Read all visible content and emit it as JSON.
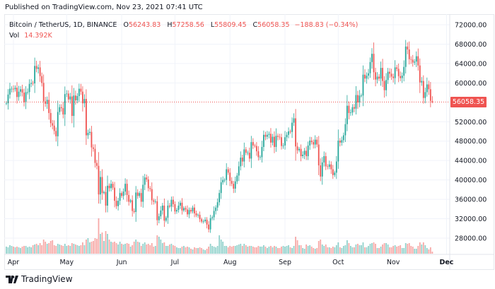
{
  "header": {
    "published": "Published on TradingView.com, Nov 23, 2021 07:41 UTC"
  },
  "legend": {
    "symbol": "Bitcoin / TetherUS, 1D, BINANCE",
    "o_label": "O",
    "o": "56243.83",
    "h_label": "H",
    "h": "57258.56",
    "l_label": "L",
    "l": "55809.45",
    "c_label": "C",
    "c": "56058.35",
    "change": "−188.83 (−0.34%)",
    "vol_label": "Vol",
    "vol": "14.392K"
  },
  "last_price_label": "56058.35",
  "footer": {
    "brand": "TradingView",
    "logo_icon": "tradingview-logo-icon"
  },
  "chart_data": {
    "type": "candlestick",
    "symbol": "Bitcoin / TetherUS",
    "interval": "1D",
    "start_date": "2021-03-28",
    "end_date": "2021-11-23",
    "colors": {
      "up": "#26a69a",
      "down": "#ef5350",
      "last_price_line": "#ef5350"
    },
    "grid": true,
    "y_scale": "linear",
    "ylim": [
      26000,
      74000
    ],
    "y_ticks": [
      "72000.00",
      "68000.00",
      "64000.00",
      "60000.00",
      "52000.00",
      "48000.00",
      "44000.00",
      "40000.00",
      "36000.00",
      "32000.00",
      "28000.00"
    ],
    "x_ticks": [
      "Apr",
      "May",
      "Jun",
      "Jul",
      "Aug",
      "Sep",
      "Oct",
      "Nov",
      "Dec"
    ],
    "last_price": 56058.35,
    "last_candle": {
      "open": 56243.83,
      "high": 57258.56,
      "low": 55809.45,
      "close": 56058.35
    },
    "first_open": 55800,
    "close": [
      55800,
      57600,
      58800,
      58800,
      58700,
      59000,
      57100,
      58200,
      58700,
      58000,
      56000,
      58100,
      58100,
      59800,
      60000,
      59900,
      63500,
      62900,
      63200,
      61400,
      60000,
      56200,
      55700,
      56500,
      53800,
      51700,
      51200,
      50100,
      49000,
      54000,
      55000,
      54800,
      53500,
      57700,
      57800,
      56600,
      57200,
      53200,
      57400,
      56400,
      57300,
      58800,
      58200,
      55800,
      56700,
      49200,
      49700,
      49900,
      46700,
      46400,
      43500,
      42900,
      37000,
      40600,
      37300,
      37500,
      34700,
      38800,
      38300,
      39200,
      38400,
      35700,
      34600,
      35700,
      37300,
      36700,
      37600,
      39200,
      36900,
      35500,
      35800,
      33600,
      33400,
      37400,
      36700,
      37300,
      35500,
      39000,
      40500,
      40100,
      38300,
      38100,
      35800,
      35500,
      35600,
      31700,
      32500,
      33700,
      34700,
      31600,
      32200,
      34700,
      34500,
      35900,
      35000,
      33500,
      33800,
      34700,
      35300,
      33700,
      34200,
      33900,
      32900,
      33800,
      33500,
      34300,
      33100,
      32700,
      32800,
      31900,
      31400,
      31500,
      31800,
      30800,
      29800,
      32100,
      32300,
      33600,
      34300,
      35400,
      37300,
      39500,
      40000,
      40000,
      42200,
      41500,
      39800,
      39200,
      38200,
      39700,
      40900,
      42800,
      44600,
      43800,
      46300,
      45600,
      45600,
      44400,
      47800,
      47100,
      47000,
      45900,
      44700,
      44700,
      46800,
      49300,
      48900,
      49300,
      49500,
      47700,
      48900,
      46800,
      49100,
      48900,
      48800,
      47000,
      47100,
      48800,
      49300,
      50000,
      49900,
      51800,
      52700,
      46900,
      46100,
      46400,
      44900,
      45200,
      46000,
      44900,
      47100,
      48100,
      47800,
      47300,
      48300,
      47300,
      43000,
      40700,
      43600,
      44900,
      42800,
      42700,
      43200,
      42200,
      41000,
      41500,
      43800,
      48100,
      47700,
      48200,
      49200,
      51500,
      55300,
      53800,
      53900,
      55000,
      54700,
      57500,
      56000,
      57400,
      57400,
      61700,
      60900,
      61500,
      62000,
      64300,
      66000,
      62200,
      60700,
      61300,
      60900,
      63100,
      60400,
      58500,
      60600,
      62300,
      61900,
      61300,
      61000,
      63200,
      62900,
      61400,
      61000,
      61500,
      63300,
      67500,
      66900,
      64900,
      64800,
      64200,
      64400,
      65500,
      63600,
      60100,
      60400,
      56900,
      58100,
      59700,
      58700,
      56300,
      56058.35
    ],
    "volume_k": [
      50,
      45,
      60,
      55,
      50,
      45,
      50,
      45,
      40,
      50,
      55,
      55,
      45,
      50,
      45,
      60,
      65,
      70,
      60,
      75,
      60,
      100,
      85,
      70,
      75,
      90,
      95,
      60,
      55,
      70,
      65,
      60,
      55,
      70,
      55,
      60,
      55,
      75,
      70,
      65,
      60,
      55,
      60,
      80,
      60,
      100,
      110,
      80,
      85,
      90,
      110,
      105,
      250,
      140,
      150,
      90,
      160,
      140,
      100,
      85,
      80,
      85,
      75,
      65,
      85,
      70,
      65,
      70,
      75,
      70,
      50,
      60,
      85,
      100,
      85,
      80,
      55,
      70,
      80,
      65,
      70,
      60,
      75,
      50,
      55,
      130,
      120,
      100,
      75,
      80,
      55,
      55,
      65,
      70,
      60,
      55,
      45,
      40,
      40,
      50,
      55,
      45,
      50,
      45,
      35,
      30,
      45,
      40,
      40,
      45,
      40,
      30,
      25,
      35,
      50,
      70,
      55,
      50,
      45,
      55,
      130,
      100,
      85,
      55,
      55,
      45,
      55,
      50,
      55,
      55,
      60,
      65,
      70,
      55,
      70,
      60,
      50,
      55,
      55,
      50,
      45,
      45,
      55,
      50,
      50,
      60,
      50,
      40,
      50,
      55,
      45,
      55,
      50,
      40,
      40,
      50,
      55,
      50,
      55,
      60,
      45,
      40,
      55,
      120,
      95,
      60,
      60,
      40,
      35,
      65,
      55,
      60,
      50,
      40,
      35,
      40,
      90,
      100,
      65,
      55,
      65,
      45,
      45,
      40,
      50,
      45,
      60,
      80,
      45,
      40,
      55,
      60,
      95,
      75,
      55,
      45,
      45,
      65,
      70,
      60,
      60,
      80,
      45,
      45,
      55,
      70,
      75,
      80,
      70,
      40,
      40,
      50,
      65,
      75,
      75,
      65,
      45,
      45,
      55,
      60,
      50,
      55,
      60,
      40,
      40,
      75,
      70,
      75,
      55,
      50,
      35,
      35,
      55,
      80,
      65,
      80,
      60,
      40,
      30,
      45,
      14.392
    ]
  }
}
